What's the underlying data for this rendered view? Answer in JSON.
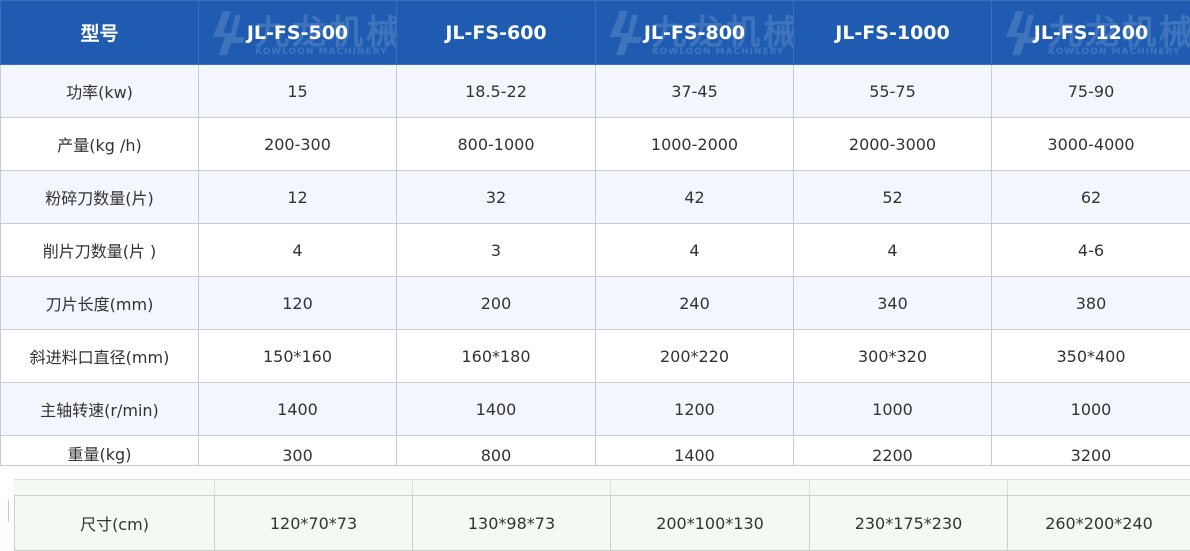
{
  "table": {
    "header": [
      "型号",
      "JL-FS-500",
      "JL-FS-600",
      "JL-FS-800",
      "JL-FS-1000",
      "JL-FS-1200"
    ],
    "rows": [
      [
        "功率(kw)",
        "15",
        "18.5-22",
        "37-45",
        "55-75",
        "75-90"
      ],
      [
        "产量(kg /h)",
        "200-300",
        "800-1000",
        "1000-2000",
        "2000-3000",
        "3000-4000"
      ],
      [
        "粉碎刀数量(片)",
        "12",
        "32",
        "42",
        "52",
        "62"
      ],
      [
        "削片刀数量(片 )",
        "4",
        "3",
        "4",
        "4",
        "4-6"
      ],
      [
        "刀片长度(mm)",
        "120",
        "200",
        "240",
        "340",
        "380"
      ],
      [
        "斜进料口直径(mm)",
        "150*160",
        "160*180",
        "200*220",
        "300*320",
        "350*400"
      ],
      [
        "主轴转速(r/min)",
        "1400",
        "1400",
        "1200",
        "1000",
        "1000"
      ],
      [
        "重量(kg)",
        "300",
        "800",
        "1400",
        "2200",
        "3200"
      ]
    ],
    "size_row": [
      "尺寸(cm)",
      "120*70*73",
      "130*98*73",
      "200*100*130",
      "230*175*230",
      "260*200*240"
    ]
  },
  "watermark": {
    "brand": "九龙机械",
    "sub": "KOWLOON MACHINERY"
  },
  "colors": {
    "header_bg": "#1f5cb1",
    "header_text": "#ffffff",
    "row_alt_bg": "#f3f7fd",
    "border": "#c5ccd8",
    "strip_bg": "#f4faf2"
  }
}
